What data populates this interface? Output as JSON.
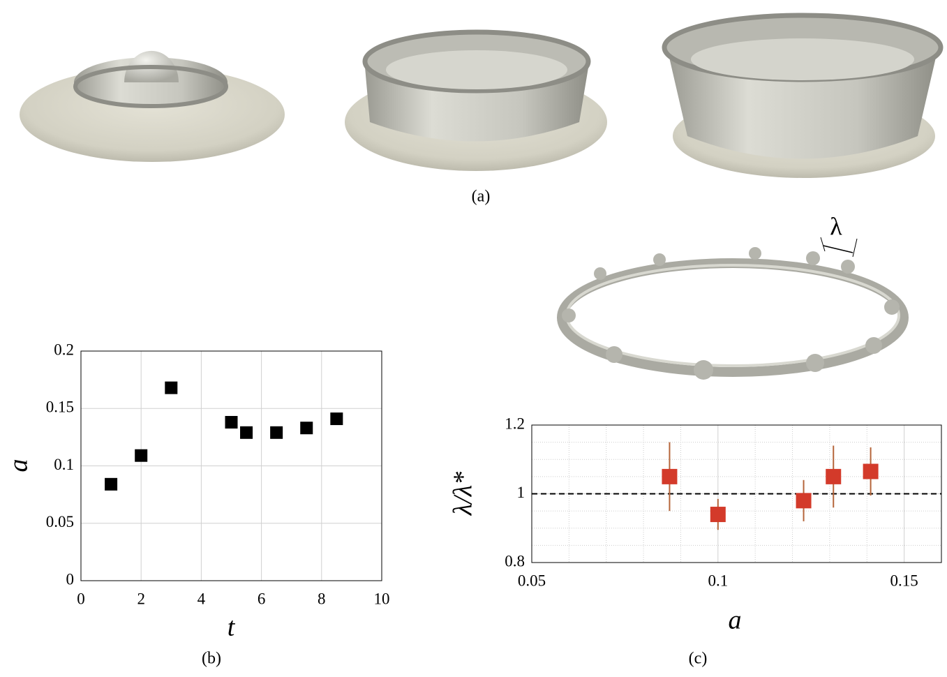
{
  "figure": {
    "captions": [
      "(a)",
      "(b)",
      "(c)"
    ],
    "ring_label": "λ"
  },
  "chart_data": [
    {
      "type": "scatter",
      "x_label": "t",
      "y_label": "a",
      "x": [
        1,
        2,
        3,
        5,
        5.5,
        6.5,
        7.5,
        8.5
      ],
      "values": [
        0.084,
        0.109,
        0.168,
        0.138,
        0.129,
        0.129,
        0.133,
        0.141
      ],
      "color": "#000000",
      "xlim": [
        0,
        10
      ],
      "xticks": [
        0,
        2,
        4,
        6,
        8,
        10
      ],
      "ylim": [
        0,
        0.2
      ],
      "yticks": [
        0,
        0.05,
        0.1,
        0.15,
        0.2
      ],
      "grid": true
    },
    {
      "type": "errorbar",
      "x_label": "a",
      "y_label": "λ/λ*",
      "x": [
        0.087,
        0.1,
        0.123,
        0.131,
        0.141
      ],
      "values": [
        1.05,
        0.94,
        0.98,
        1.05,
        1.065
      ],
      "errors": [
        0.1,
        0.045,
        0.06,
        0.09,
        0.07
      ],
      "color": "#d33a2a",
      "error_color": "#b5653a",
      "xlim": [
        0.05,
        0.16
      ],
      "xticks": [
        0.05,
        0.1,
        0.15
      ],
      "ylim": [
        0.8,
        1.2
      ],
      "yticks": [
        0.8,
        1,
        1.2
      ],
      "hline": 1,
      "grid": true,
      "minor_grid": true
    }
  ]
}
